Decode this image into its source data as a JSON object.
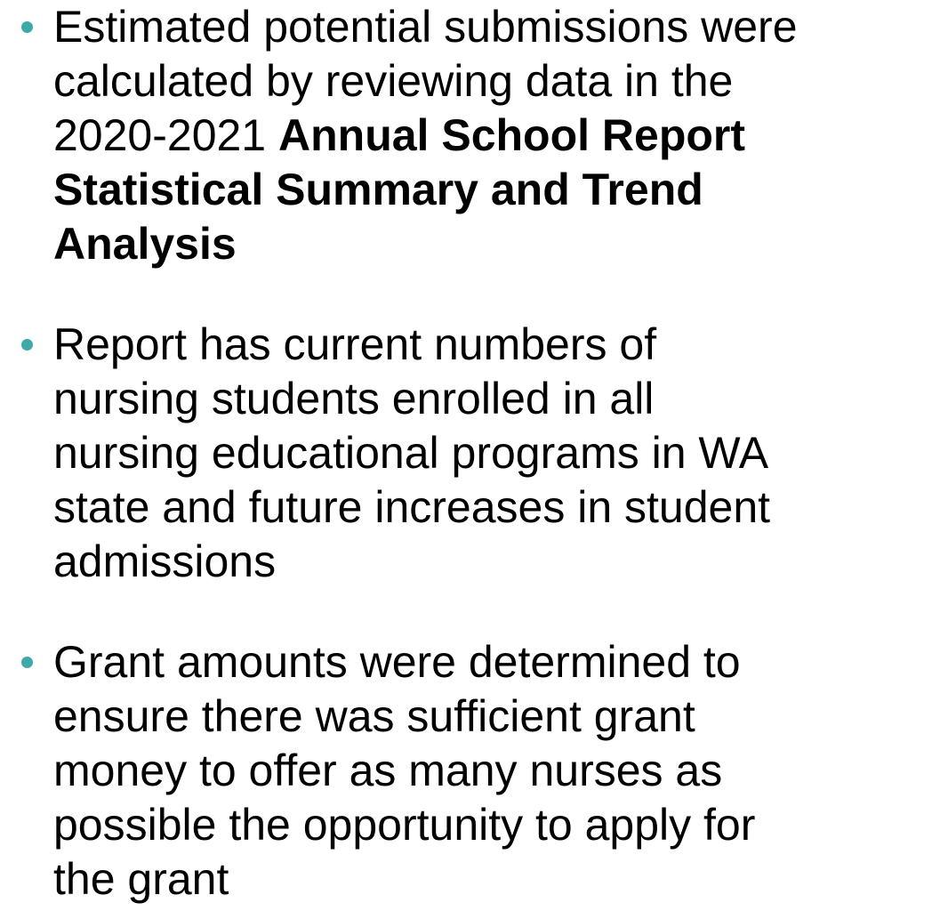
{
  "bullets": [
    {
      "lines": [
        [
          {
            "text": "Estimated potential submissions were",
            "bold": false
          }
        ],
        [
          {
            "text": "calculated by reviewing data in the",
            "bold": false
          }
        ],
        [
          {
            "text": "2020-2021 ",
            "bold": false
          },
          {
            "text": "Annual School Report",
            "bold": true
          }
        ],
        [
          {
            "text": "Statistical Summary and Trend",
            "bold": true
          }
        ],
        [
          {
            "text": "Analysis",
            "bold": true
          }
        ]
      ]
    },
    {
      "lines": [
        [
          {
            "text": "Report has current numbers of",
            "bold": false
          }
        ],
        [
          {
            "text": "nursing students enrolled in all",
            "bold": false
          }
        ],
        [
          {
            "text": "nursing educational programs in WA",
            "bold": false
          }
        ],
        [
          {
            "text": "state and future increases in student",
            "bold": false
          }
        ],
        [
          {
            "text": "admissions",
            "bold": false
          }
        ]
      ]
    },
    {
      "lines": [
        [
          {
            "text": "Grant amounts were determined to",
            "bold": false
          }
        ],
        [
          {
            "text": "ensure there was sufficient grant",
            "bold": false
          }
        ],
        [
          {
            "text": "money to offer as many nurses as",
            "bold": false
          }
        ],
        [
          {
            "text": "possible the opportunity to apply for",
            "bold": false
          }
        ],
        [
          {
            "text": "the grant",
            "bold": false
          }
        ]
      ]
    }
  ]
}
